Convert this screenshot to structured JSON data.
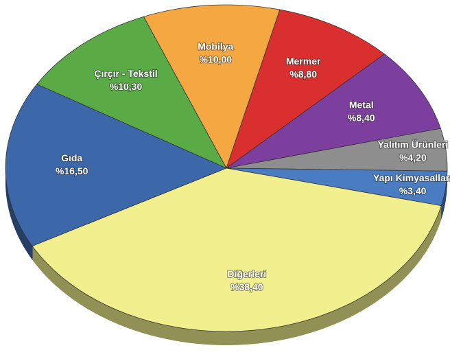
{
  "chart_data": {
    "type": "pie",
    "categories": [
      "Mobilya",
      "Mermer",
      "Metal",
      "Yalıtım Ürünleri",
      "Yapı Kimyasalları",
      "Diğerleri",
      "Gıda",
      "Çırçır - Tekstil"
    ],
    "values": [
      10.0,
      8.8,
      8.4,
      4.2,
      3.4,
      38.4,
      16.5,
      10.3
    ],
    "value_labels": [
      "%10,00",
      "%8,80",
      "%8,40",
      "%4,20",
      "%3,40",
      "%38,40",
      "%16,50",
      "%10,30"
    ],
    "colors": [
      "#f5a742",
      "#d9302f",
      "#7d3f9e",
      "#8e8e8e",
      "#4a7cc2",
      "#f2f08e",
      "#3c67a8",
      "#5aaa46"
    ]
  }
}
